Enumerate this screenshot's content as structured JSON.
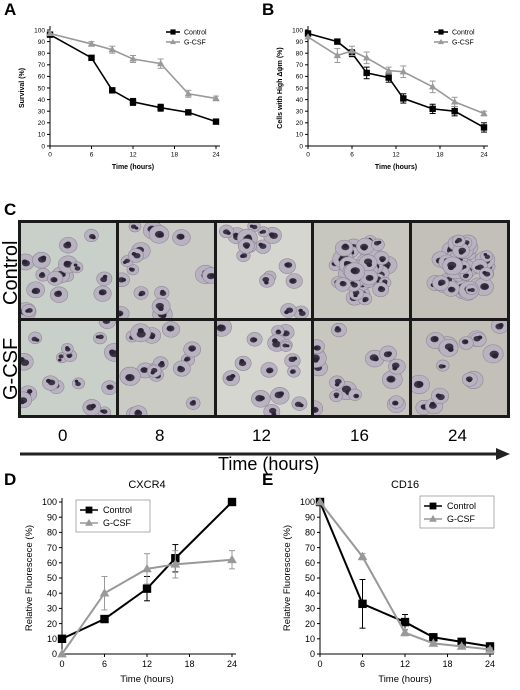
{
  "panels": {
    "a": "A",
    "b": "B",
    "c": "C",
    "d": "D",
    "e": "E"
  },
  "micrograph": {
    "rows": [
      "Control",
      "G-CSF"
    ],
    "times": [
      "0",
      "8",
      "12",
      "16",
      "24"
    ],
    "axis_title": "Time (hours)"
  },
  "chart_data": [
    {
      "id": "A",
      "type": "line",
      "title": "",
      "xlabel": "Time (hours)",
      "ylabel": "Survival (%)",
      "xlim": [
        0,
        24
      ],
      "ylim": [
        0,
        100
      ],
      "xticks": [
        0,
        6,
        12,
        18,
        24
      ],
      "yticks": [
        0,
        10,
        20,
        30,
        40,
        50,
        60,
        70,
        80,
        90,
        100
      ],
      "legend": "top-right",
      "legend_style": "compact",
      "series": [
        {
          "name": "Control",
          "color": "#000000",
          "marker": "square",
          "x": [
            0,
            6,
            9,
            12,
            16,
            20,
            24
          ],
          "y": [
            96,
            76,
            48,
            38,
            33,
            29,
            21
          ],
          "err": [
            0,
            2,
            2,
            3,
            3,
            1,
            1
          ]
        },
        {
          "name": "G-CSF",
          "color": "#999999",
          "marker": "triangle",
          "x": [
            0,
            6,
            9,
            12,
            16,
            20,
            24
          ],
          "y": [
            97,
            88,
            83,
            75,
            71,
            45,
            41
          ],
          "err": [
            0,
            2,
            3,
            3,
            4,
            3,
            2
          ]
        }
      ]
    },
    {
      "id": "B",
      "type": "line",
      "title": "",
      "xlabel": "Time (hours)",
      "ylabel": "Cells with High Δψm (%)",
      "xlim": [
        0,
        24
      ],
      "ylim": [
        0,
        100
      ],
      "xticks": [
        0,
        6,
        12,
        18,
        24
      ],
      "yticks": [
        0,
        10,
        20,
        30,
        40,
        50,
        60,
        70,
        80,
        90,
        100
      ],
      "legend": "top-right",
      "legend_style": "compact",
      "series": [
        {
          "name": "Control",
          "color": "#000000",
          "marker": "square",
          "x": [
            0,
            4,
            6,
            8,
            11,
            13,
            17,
            20,
            24
          ],
          "y": [
            97,
            90,
            80,
            63,
            59,
            41,
            32,
            30,
            16
          ],
          "err": [
            0,
            2,
            3,
            5,
            4,
            4,
            4,
            4,
            4
          ]
        },
        {
          "name": "G-CSF",
          "color": "#999999",
          "marker": "triangle",
          "x": [
            0,
            4,
            6,
            8,
            11,
            13,
            17,
            20,
            24
          ],
          "y": [
            94,
            78,
            82,
            76,
            65,
            64,
            51,
            38,
            28
          ],
          "err": [
            0,
            6,
            4,
            5,
            3,
            5,
            5,
            4,
            2
          ]
        }
      ]
    },
    {
      "id": "D",
      "type": "line",
      "title": "CXCR4",
      "xlabel": "Time (hours)",
      "ylabel": "Relative Fluorescece (%)",
      "xlim": [
        0,
        24
      ],
      "ylim": [
        0,
        100
      ],
      "xticks": [
        0,
        6,
        12,
        18,
        24
      ],
      "yticks": [
        0,
        10,
        20,
        30,
        40,
        50,
        60,
        70,
        80,
        90,
        100
      ],
      "legend": "top-left",
      "legend_style": "boxed",
      "series": [
        {
          "name": "Control",
          "color": "#000000",
          "marker": "square",
          "x": [
            0,
            6,
            12,
            16,
            24
          ],
          "y": [
            10,
            23,
            43,
            63,
            100
          ],
          "err": [
            0,
            1,
            8,
            9,
            0
          ]
        },
        {
          "name": "G-CSF",
          "color": "#999999",
          "marker": "triangle",
          "x": [
            0,
            6,
            12,
            16,
            24
          ],
          "y": [
            0,
            40,
            56,
            59,
            62
          ],
          "err": [
            0,
            11,
            10,
            9,
            6
          ]
        }
      ]
    },
    {
      "id": "E",
      "type": "line",
      "title": "CD16",
      "xlabel": "Time (hours)",
      "ylabel": "Relative Fluorescece (%)",
      "xlim": [
        0,
        24
      ],
      "ylim": [
        0,
        100
      ],
      "xticks": [
        0,
        6,
        12,
        18,
        24
      ],
      "yticks": [
        0,
        10,
        20,
        30,
        40,
        50,
        60,
        70,
        80,
        90,
        100
      ],
      "legend": "top-right",
      "legend_style": "boxed",
      "series": [
        {
          "name": "Control",
          "color": "#000000",
          "marker": "square",
          "x": [
            0,
            6,
            12,
            16,
            20,
            24
          ],
          "y": [
            100,
            33,
            21,
            11,
            8,
            5
          ],
          "err": [
            0,
            16,
            5,
            2,
            1,
            1
          ]
        },
        {
          "name": "G-CSF",
          "color": "#999999",
          "marker": "triangle",
          "x": [
            0,
            6,
            12,
            16,
            20,
            24
          ],
          "y": [
            100,
            64,
            14,
            7,
            5,
            3
          ],
          "err": [
            0,
            2,
            2,
            1,
            1,
            1
          ]
        }
      ]
    }
  ]
}
